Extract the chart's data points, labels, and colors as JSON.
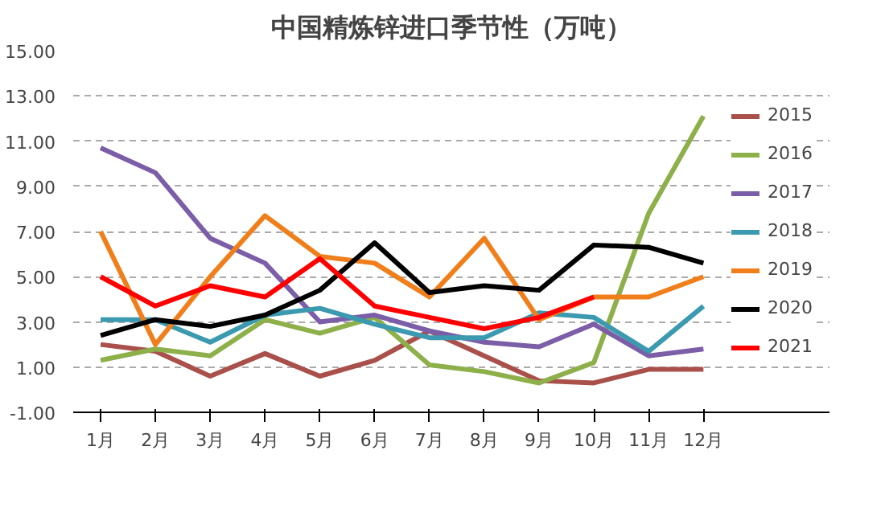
{
  "chart_data": {
    "type": "line",
    "title": "中国精炼锌进口季节性（万吨）",
    "categories": [
      "1月",
      "2月",
      "3月",
      "4月",
      "5月",
      "6月",
      "7月",
      "8月",
      "9月",
      "10月",
      "11月",
      "12月"
    ],
    "ylim": [
      -1,
      15
    ],
    "yticks": [
      {
        "value": -1,
        "label": "-1.00"
      },
      {
        "value": 1,
        "label": "1.00"
      },
      {
        "value": 3,
        "label": "3.00"
      },
      {
        "value": 5,
        "label": "5.00"
      },
      {
        "value": 7,
        "label": "7.00"
      },
      {
        "value": 9,
        "label": "9.00"
      },
      {
        "value": 11,
        "label": "11.00"
      },
      {
        "value": 13,
        "label": "13.00"
      },
      {
        "value": 15,
        "label": "15.00"
      }
    ],
    "grid": "y",
    "legend": "right",
    "line_style": "solid",
    "series": [
      {
        "name": "2015",
        "color": "#a9504b",
        "values": [
          2.0,
          1.7,
          0.6,
          1.6,
          0.6,
          1.3,
          2.6,
          1.5,
          0.4,
          0.3,
          0.9,
          0.9
        ]
      },
      {
        "name": "2016",
        "color": "#8db04a",
        "values": [
          1.3,
          1.8,
          1.5,
          3.1,
          2.5,
          3.2,
          1.1,
          0.8,
          0.3,
          1.2,
          7.8,
          12.1
        ]
      },
      {
        "name": "2017",
        "color": "#7b5ea7",
        "values": [
          10.7,
          9.6,
          6.7,
          5.6,
          3.0,
          3.3,
          2.6,
          2.1,
          1.9,
          2.9,
          1.5,
          1.8
        ]
      },
      {
        "name": "2018",
        "color": "#3b99b0",
        "values": [
          3.1,
          3.1,
          2.1,
          3.3,
          3.6,
          2.9,
          2.3,
          2.3,
          3.4,
          3.2,
          1.7,
          3.7
        ]
      },
      {
        "name": "2019",
        "color": "#f07f1b",
        "values": [
          7.0,
          2.0,
          5.0,
          7.7,
          5.9,
          5.6,
          4.1,
          6.7,
          3.1,
          4.1,
          4.1,
          5.0
        ]
      },
      {
        "name": "2020",
        "color": "#000000",
        "values": [
          2.4,
          3.1,
          2.8,
          3.3,
          4.4,
          6.5,
          4.3,
          4.6,
          4.4,
          6.4,
          6.3,
          5.6
        ]
      },
      {
        "name": "2021",
        "color": "#ff0000",
        "values": [
          5.0,
          3.7,
          4.6,
          4.1,
          5.8,
          3.7,
          3.2,
          2.7,
          3.2,
          4.1,
          null,
          null
        ]
      }
    ]
  }
}
